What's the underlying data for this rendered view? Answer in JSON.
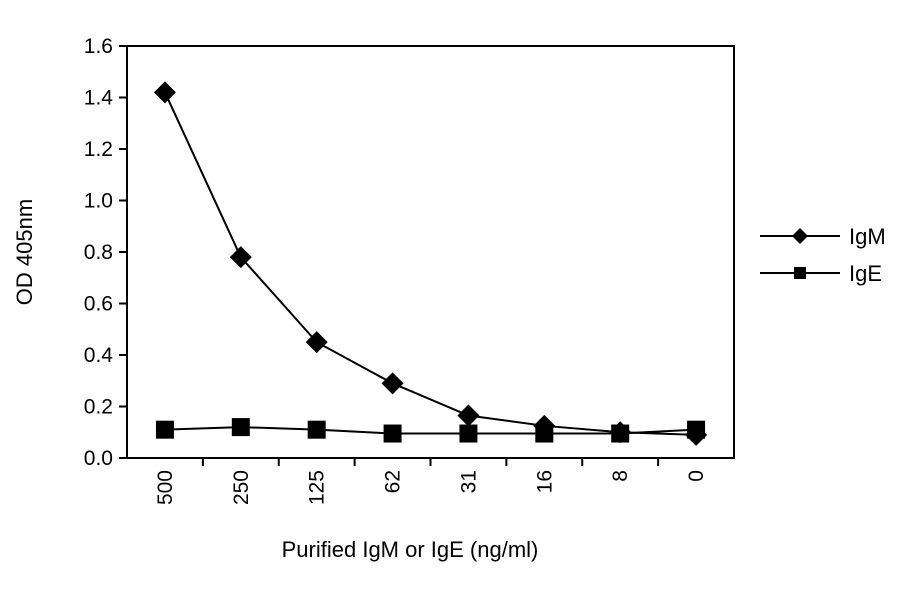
{
  "chart_data": {
    "type": "line",
    "title": "",
    "xlabel": "Purified IgM or IgE (ng/ml)",
    "ylabel": "OD 405nm",
    "categories": [
      "500",
      "250",
      "125",
      "62",
      "31",
      "16",
      "8",
      "0"
    ],
    "ylim": [
      0,
      1.6
    ],
    "yticks": [
      "0.0",
      "0.2",
      "0.4",
      "0.6",
      "0.8",
      "1.0",
      "1.2",
      "1.4",
      "1.6"
    ],
    "grid": false,
    "legend_position": "right",
    "series": [
      {
        "name": "IgM",
        "marker": "diamond",
        "color": "#000000",
        "values": [
          1.42,
          0.78,
          0.45,
          0.29,
          0.165,
          0.125,
          0.1,
          0.09
        ]
      },
      {
        "name": "IgE",
        "marker": "square",
        "color": "#000000",
        "values": [
          0.11,
          0.12,
          0.11,
          0.095,
          0.095,
          0.095,
          0.095,
          0.11
        ]
      }
    ]
  }
}
